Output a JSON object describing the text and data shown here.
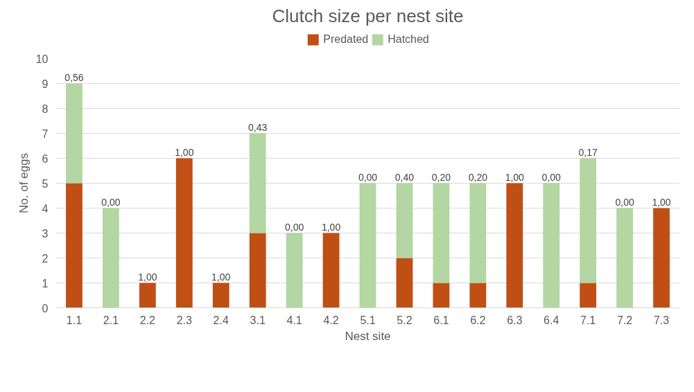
{
  "chart_data": {
    "type": "bar",
    "title": "Clutch size per nest site",
    "xlabel": "Nest site",
    "ylabel": "No. of eggs",
    "categories": [
      "1.1",
      "2.1",
      "2.2",
      "2.3",
      "2.4",
      "3.1",
      "4.1",
      "4.2",
      "5.1",
      "5.2",
      "6.1",
      "6.2",
      "6.3",
      "6.4",
      "7.1",
      "7.2",
      "7.3"
    ],
    "stacked": true,
    "series": [
      {
        "name": "Predated",
        "color": "#c04f15",
        "values": [
          5,
          0,
          1,
          6,
          1,
          3,
          0,
          3,
          0,
          2,
          1,
          1,
          5,
          0,
          1,
          0,
          4
        ]
      },
      {
        "name": "Hatched",
        "color": "#b4d6a2",
        "values": [
          4,
          4,
          0,
          0,
          0,
          4,
          3,
          0,
          5,
          3,
          4,
          4,
          0,
          5,
          5,
          4,
          0
        ]
      }
    ],
    "annotations": [
      {
        "text": "0,56",
        "x": "1.1",
        "y": 9
      },
      {
        "text": "0,00",
        "x": "2.1",
        "y": 4
      },
      {
        "text": "1,00",
        "x": "2.2",
        "y": 1
      },
      {
        "text": "1,00",
        "x": "2.3",
        "y": 6
      },
      {
        "text": "1,00",
        "x": "2.4",
        "y": 1
      },
      {
        "text": "0,43",
        "x": "3.1",
        "y": 7
      },
      {
        "text": "0,00",
        "x": "4.1",
        "y": 3
      },
      {
        "text": "1,00",
        "x": "4.2",
        "y": 3
      },
      {
        "text": "0,00",
        "x": "5.1",
        "y": 5
      },
      {
        "text": "0,40",
        "x": "5.2",
        "y": 5
      },
      {
        "text": "0,20",
        "x": "6.1",
        "y": 5
      },
      {
        "text": "0,20",
        "x": "6.2",
        "y": 5
      },
      {
        "text": "1,00",
        "x": "6.3",
        "y": 5
      },
      {
        "text": "0,00",
        "x": "6.4",
        "y": 5
      },
      {
        "text": "0,17",
        "x": "7.1",
        "y": 6
      },
      {
        "text": "0,00",
        "x": "7.2",
        "y": 4
      },
      {
        "text": "1,00",
        "x": "7.3",
        "y": 4
      }
    ],
    "ylim": [
      0,
      10
    ],
    "yticks": [
      0,
      1,
      2,
      3,
      4,
      5,
      6,
      7,
      8,
      9,
      10
    ],
    "grid": "y",
    "legend": "top"
  }
}
